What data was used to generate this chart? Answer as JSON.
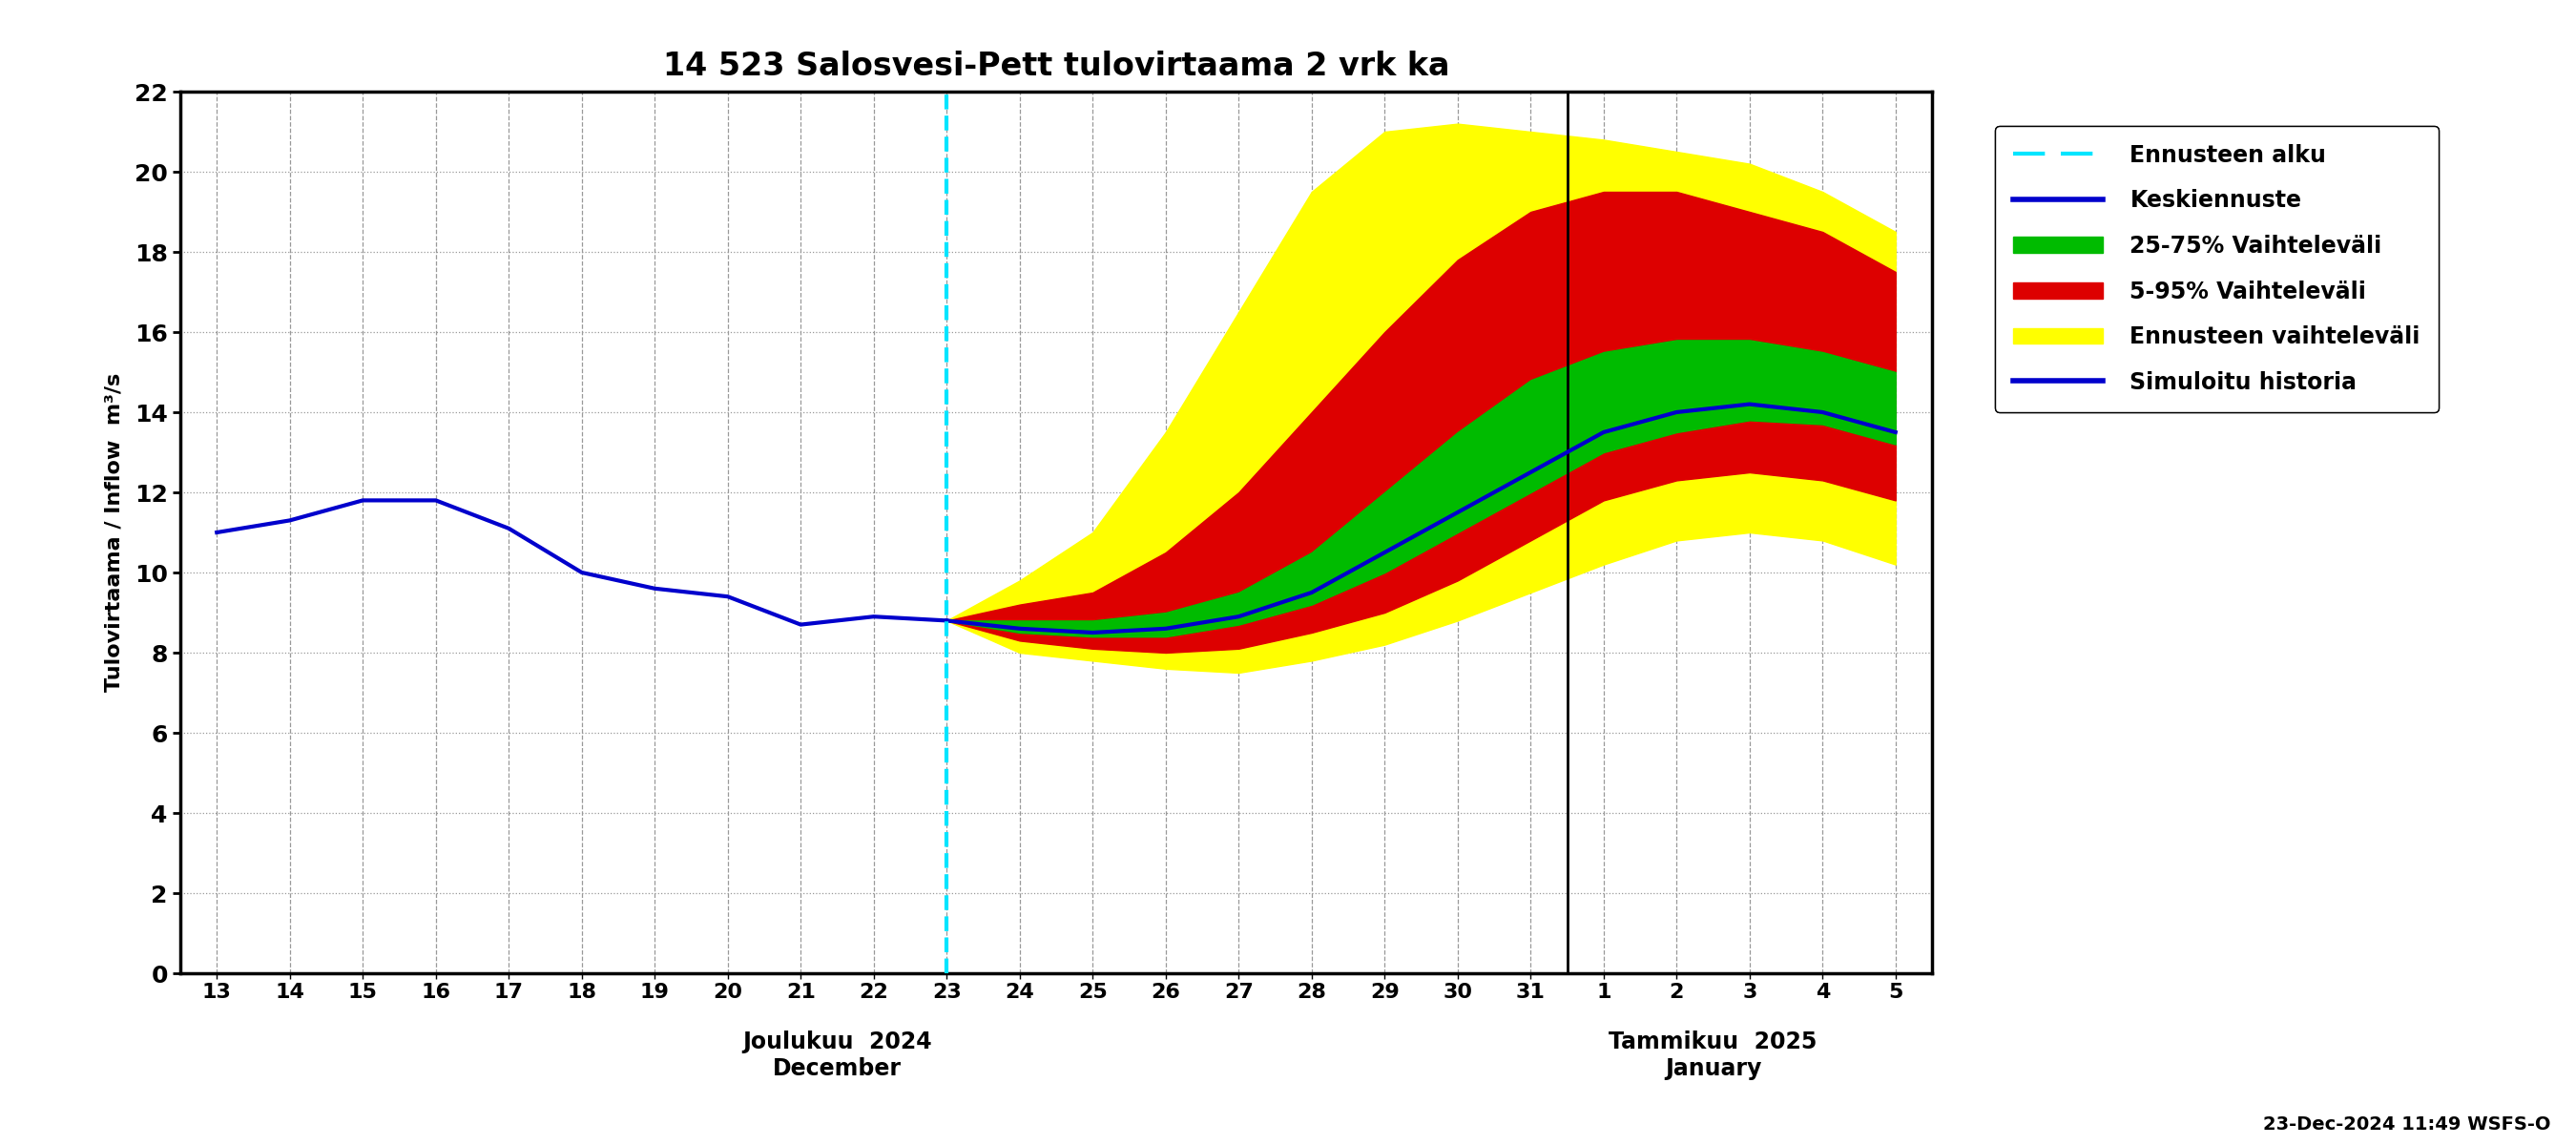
{
  "title": "14 523 Salosvesi-Pett tulovirtaama 2 vrk ka",
  "ylabel": "Tulovirtaama / Inflow  m³/s",
  "ylim": [
    0,
    22
  ],
  "yticks": [
    0,
    2,
    4,
    6,
    8,
    10,
    12,
    14,
    16,
    18,
    20,
    22
  ],
  "vline_color": "#00e5ff",
  "history_color": "#0000cc",
  "mean_color": "#0000cc",
  "green_color": "#00bb00",
  "red_color": "#dd0000",
  "yellow_color": "#ffff00",
  "background_color": "#ffffff",
  "grid_color": "#999999",
  "footnote": "23-Dec-2024 11:49 WSFS-O",
  "legend_labels": [
    "Ennusteen alku",
    "Keskiennuste",
    "25-75% Vaihteleväli",
    "5-95% Vaihteleväli",
    "Ennusteen vaihteleväli",
    "Simuloitu historia"
  ],
  "x_dec_labels": [
    "13",
    "14",
    "15",
    "16",
    "17",
    "18",
    "19",
    "20",
    "21",
    "22",
    "23",
    "24",
    "25",
    "26",
    "27",
    "28",
    "29",
    "30",
    "31"
  ],
  "x_jan_labels": [
    "1",
    "2",
    "3",
    "4",
    "5"
  ],
  "month_label_dec": "Joulukuu  2024\nDecember",
  "month_label_jan": "Tammikuu  2025\nJanuary",
  "hist_x": [
    0,
    1,
    2,
    3,
    4,
    5,
    6,
    7,
    8,
    9,
    10
  ],
  "hist_y": [
    11.0,
    11.3,
    11.8,
    11.8,
    11.1,
    10.0,
    9.6,
    9.4,
    8.7,
    8.9,
    8.8
  ],
  "forecast_x": [
    10,
    11,
    12,
    13,
    14,
    15,
    16,
    17,
    18,
    19,
    20,
    21,
    22,
    23
  ],
  "mean_y": [
    8.8,
    8.6,
    8.5,
    8.6,
    8.9,
    9.5,
    10.5,
    11.5,
    12.5,
    13.5,
    14.0,
    14.2,
    14.0,
    13.5
  ],
  "p25_y": [
    8.8,
    8.5,
    8.4,
    8.4,
    8.7,
    9.2,
    10.0,
    11.0,
    12.0,
    13.0,
    13.5,
    13.8,
    13.7,
    13.2
  ],
  "p75_y": [
    8.8,
    8.8,
    8.8,
    9.0,
    9.5,
    10.5,
    12.0,
    13.5,
    14.8,
    15.5,
    15.8,
    15.8,
    15.5,
    15.0
  ],
  "p05_y": [
    8.8,
    8.3,
    8.1,
    8.0,
    8.1,
    8.5,
    9.0,
    9.8,
    10.8,
    11.8,
    12.3,
    12.5,
    12.3,
    11.8
  ],
  "p95_y": [
    8.8,
    9.2,
    9.5,
    10.5,
    12.0,
    14.0,
    16.0,
    17.8,
    19.0,
    19.5,
    19.5,
    19.0,
    18.5,
    17.5
  ],
  "env_low": [
    8.8,
    8.0,
    7.8,
    7.6,
    7.5,
    7.8,
    8.2,
    8.8,
    9.5,
    10.2,
    10.8,
    11.0,
    10.8,
    10.2
  ],
  "env_high": [
    8.8,
    9.8,
    11.0,
    13.5,
    16.5,
    19.5,
    21.0,
    21.2,
    21.0,
    20.8,
    20.5,
    20.2,
    19.5,
    18.5
  ]
}
